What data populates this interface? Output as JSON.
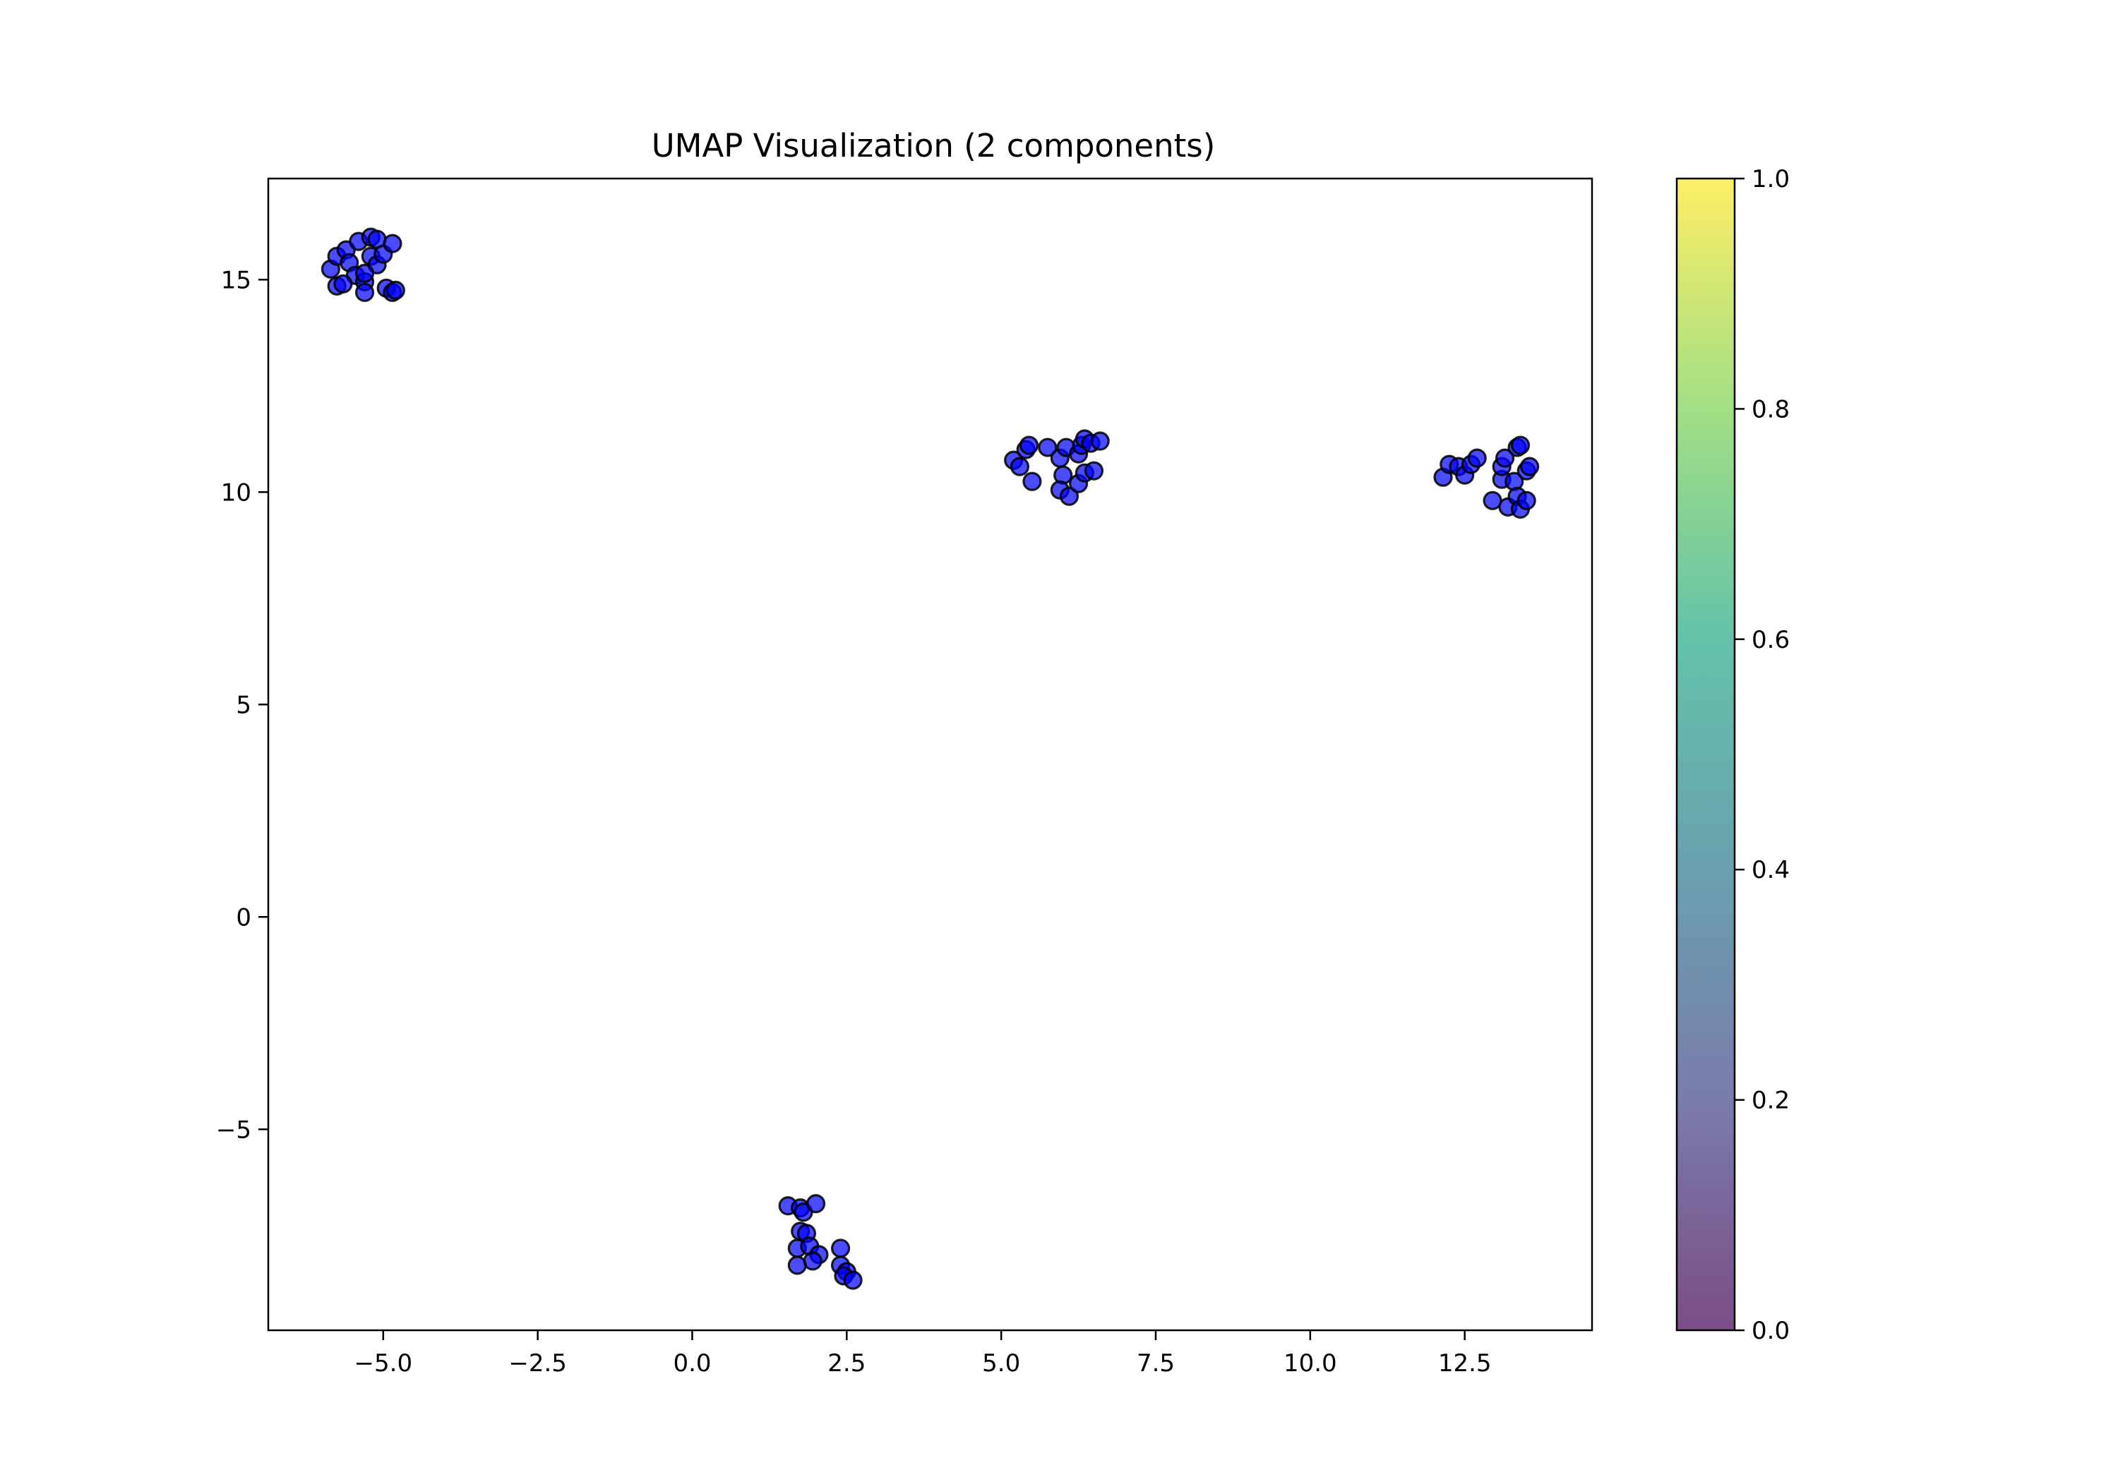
{
  "chart_data": {
    "type": "scatter",
    "title": "UMAP Visualization (2 components)",
    "xlabel": "",
    "ylabel": "",
    "xlim": [
      -6.86,
      14.56
    ],
    "ylim": [
      -9.73,
      17.38
    ],
    "xticks": [
      -5.0,
      -2.5,
      0.0,
      2.5,
      5.0,
      7.5,
      10.0,
      12.5
    ],
    "xtick_labels": [
      "−5.0",
      "−2.5",
      "0.0",
      "2.5",
      "5.0",
      "7.5",
      "10.0",
      "12.5"
    ],
    "yticks": [
      -5,
      0,
      5,
      10,
      15
    ],
    "ytick_labels": [
      "−5",
      "0",
      "5",
      "10",
      "15"
    ],
    "grid": false,
    "legend": "none",
    "marker_color": "#0000ff",
    "marker_edge_color": "#000000",
    "colorbar": {
      "range": [
        0.0,
        1.0
      ],
      "ticks": [
        0.0,
        0.2,
        0.4,
        0.6,
        0.8,
        1.0
      ],
      "tick_labels": [
        "0.0",
        "0.2",
        "0.4",
        "0.6",
        "0.8",
        "1.0"
      ],
      "colormap": "viridis",
      "colors": [
        "#440154",
        "#414487",
        "#2a788e",
        "#22a884",
        "#7ad151",
        "#fde725"
      ],
      "alpha": 0.7
    },
    "series": [
      {
        "points": [
          [
            -5.85,
            15.25
          ],
          [
            -5.75,
            15.55
          ],
          [
            -5.6,
            15.7
          ],
          [
            -5.55,
            15.4
          ],
          [
            -5.4,
            15.9
          ],
          [
            -5.2,
            16.0
          ],
          [
            -5.1,
            15.95
          ],
          [
            -5.2,
            15.55
          ],
          [
            -5.1,
            15.35
          ],
          [
            -5.0,
            15.6
          ],
          [
            -4.85,
            15.85
          ],
          [
            -5.45,
            15.1
          ],
          [
            -5.3,
            14.95
          ],
          [
            -5.3,
            14.7
          ],
          [
            -5.3,
            15.15
          ],
          [
            -5.75,
            14.85
          ],
          [
            -5.65,
            14.9
          ],
          [
            -4.95,
            14.8
          ],
          [
            -4.85,
            14.7
          ],
          [
            -4.8,
            14.75
          ],
          [
            1.55,
            -6.8
          ],
          [
            1.75,
            -6.85
          ],
          [
            1.8,
            -6.95
          ],
          [
            2.0,
            -6.75
          ],
          [
            1.75,
            -7.4
          ],
          [
            1.85,
            -7.45
          ],
          [
            1.7,
            -7.8
          ],
          [
            1.9,
            -7.75
          ],
          [
            2.05,
            -7.95
          ],
          [
            1.7,
            -8.2
          ],
          [
            1.95,
            -8.1
          ],
          [
            2.4,
            -7.8
          ],
          [
            2.4,
            -8.2
          ],
          [
            2.5,
            -8.35
          ],
          [
            2.45,
            -8.45
          ],
          [
            2.6,
            -8.55
          ],
          [
            5.2,
            10.75
          ],
          [
            5.3,
            10.6
          ],
          [
            5.4,
            11.0
          ],
          [
            5.45,
            11.1
          ],
          [
            5.5,
            10.25
          ],
          [
            5.75,
            11.05
          ],
          [
            5.95,
            10.8
          ],
          [
            6.05,
            11.05
          ],
          [
            6.0,
            10.4
          ],
          [
            5.95,
            10.05
          ],
          [
            6.1,
            9.9
          ],
          [
            6.25,
            10.2
          ],
          [
            6.25,
            10.9
          ],
          [
            6.3,
            11.1
          ],
          [
            6.35,
            11.25
          ],
          [
            6.45,
            11.15
          ],
          [
            6.35,
            10.45
          ],
          [
            6.5,
            10.5
          ],
          [
            6.6,
            11.2
          ],
          [
            12.15,
            10.35
          ],
          [
            12.25,
            10.65
          ],
          [
            12.4,
            10.6
          ],
          [
            12.5,
            10.4
          ],
          [
            12.6,
            10.65
          ],
          [
            12.7,
            10.8
          ],
          [
            12.95,
            9.8
          ],
          [
            13.1,
            10.3
          ],
          [
            13.1,
            10.6
          ],
          [
            13.15,
            10.8
          ],
          [
            13.2,
            9.65
          ],
          [
            13.3,
            10.25
          ],
          [
            13.35,
            9.9
          ],
          [
            13.35,
            11.05
          ],
          [
            13.4,
            11.1
          ],
          [
            13.4,
            9.6
          ],
          [
            13.5,
            10.5
          ],
          [
            13.5,
            9.8
          ],
          [
            13.55,
            10.6
          ]
        ]
      }
    ]
  }
}
